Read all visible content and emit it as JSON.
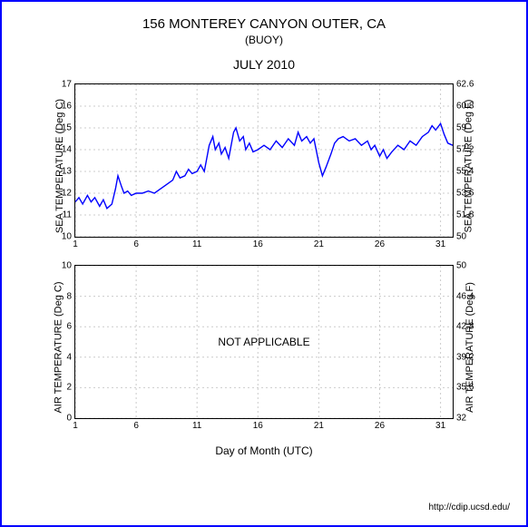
{
  "header": {
    "title": "156 MONTEREY CANYON OUTER, CA",
    "subtitle": "(BUOY)",
    "period": "JULY 2010"
  },
  "attribution": "http://cdip.ucsd.edu/",
  "x_axis": {
    "label": "Day of Month (UTC)",
    "ticks": [
      1,
      6,
      11,
      16,
      21,
      26,
      31
    ],
    "xlim": [
      1,
      32
    ]
  },
  "sea_temp": {
    "type": "line",
    "left_label": "SEA TEMPERATURE (Deg C)",
    "right_label": "SEA TEMPERATURE (Deg F)",
    "ylim": [
      10,
      17
    ],
    "yticks_left": [
      10,
      11,
      12,
      13,
      14,
      15,
      16,
      17
    ],
    "yticks_right": [
      50,
      51.8,
      53.6,
      55.4,
      57.2,
      59,
      60.8,
      62.6
    ],
    "line_color": "#0000ff",
    "grid_color": "#cccccc",
    "line_width": 1.4,
    "series": [
      {
        "x": 1.0,
        "y": 11.6
      },
      {
        "x": 1.3,
        "y": 11.8
      },
      {
        "x": 1.6,
        "y": 11.5
      },
      {
        "x": 2.0,
        "y": 11.9
      },
      {
        "x": 2.3,
        "y": 11.6
      },
      {
        "x": 2.6,
        "y": 11.8
      },
      {
        "x": 3.0,
        "y": 11.4
      },
      {
        "x": 3.3,
        "y": 11.7
      },
      {
        "x": 3.6,
        "y": 11.3
      },
      {
        "x": 4.0,
        "y": 11.5
      },
      {
        "x": 4.3,
        "y": 12.2
      },
      {
        "x": 4.5,
        "y": 12.8
      },
      {
        "x": 4.8,
        "y": 12.3
      },
      {
        "x": 5.0,
        "y": 12.0
      },
      {
        "x": 5.3,
        "y": 12.1
      },
      {
        "x": 5.6,
        "y": 11.9
      },
      {
        "x": 6.0,
        "y": 12.0
      },
      {
        "x": 6.5,
        "y": 12.0
      },
      {
        "x": 7.0,
        "y": 12.1
      },
      {
        "x": 7.5,
        "y": 12.0
      },
      {
        "x": 8.0,
        "y": 12.2
      },
      {
        "x": 8.5,
        "y": 12.4
      },
      {
        "x": 9.0,
        "y": 12.6
      },
      {
        "x": 9.3,
        "y": 13.0
      },
      {
        "x": 9.6,
        "y": 12.7
      },
      {
        "x": 10.0,
        "y": 12.8
      },
      {
        "x": 10.3,
        "y": 13.1
      },
      {
        "x": 10.6,
        "y": 12.9
      },
      {
        "x": 11.0,
        "y": 13.0
      },
      {
        "x": 11.3,
        "y": 13.3
      },
      {
        "x": 11.6,
        "y": 13.0
      },
      {
        "x": 12.0,
        "y": 14.2
      },
      {
        "x": 12.3,
        "y": 14.6
      },
      {
        "x": 12.5,
        "y": 14.0
      },
      {
        "x": 12.8,
        "y": 14.3
      },
      {
        "x": 13.0,
        "y": 13.8
      },
      {
        "x": 13.3,
        "y": 14.1
      },
      {
        "x": 13.6,
        "y": 13.6
      },
      {
        "x": 14.0,
        "y": 14.8
      },
      {
        "x": 14.2,
        "y": 15.0
      },
      {
        "x": 14.5,
        "y": 14.4
      },
      {
        "x": 14.8,
        "y": 14.6
      },
      {
        "x": 15.0,
        "y": 14.0
      },
      {
        "x": 15.3,
        "y": 14.3
      },
      {
        "x": 15.6,
        "y": 13.9
      },
      {
        "x": 16.0,
        "y": 14.0
      },
      {
        "x": 16.5,
        "y": 14.2
      },
      {
        "x": 17.0,
        "y": 14.0
      },
      {
        "x": 17.5,
        "y": 14.4
      },
      {
        "x": 18.0,
        "y": 14.1
      },
      {
        "x": 18.5,
        "y": 14.5
      },
      {
        "x": 19.0,
        "y": 14.2
      },
      {
        "x": 19.3,
        "y": 14.8
      },
      {
        "x": 19.6,
        "y": 14.4
      },
      {
        "x": 20.0,
        "y": 14.6
      },
      {
        "x": 20.3,
        "y": 14.3
      },
      {
        "x": 20.6,
        "y": 14.5
      },
      {
        "x": 21.0,
        "y": 13.4
      },
      {
        "x": 21.3,
        "y": 12.8
      },
      {
        "x": 21.6,
        "y": 13.2
      },
      {
        "x": 22.0,
        "y": 13.8
      },
      {
        "x": 22.3,
        "y": 14.3
      },
      {
        "x": 22.6,
        "y": 14.5
      },
      {
        "x": 23.0,
        "y": 14.6
      },
      {
        "x": 23.5,
        "y": 14.4
      },
      {
        "x": 24.0,
        "y": 14.5
      },
      {
        "x": 24.5,
        "y": 14.2
      },
      {
        "x": 25.0,
        "y": 14.4
      },
      {
        "x": 25.3,
        "y": 14.0
      },
      {
        "x": 25.6,
        "y": 14.2
      },
      {
        "x": 26.0,
        "y": 13.7
      },
      {
        "x": 26.3,
        "y": 14.0
      },
      {
        "x": 26.6,
        "y": 13.6
      },
      {
        "x": 27.0,
        "y": 13.9
      },
      {
        "x": 27.5,
        "y": 14.2
      },
      {
        "x": 28.0,
        "y": 14.0
      },
      {
        "x": 28.5,
        "y": 14.4
      },
      {
        "x": 29.0,
        "y": 14.2
      },
      {
        "x": 29.5,
        "y": 14.6
      },
      {
        "x": 30.0,
        "y": 14.8
      },
      {
        "x": 30.3,
        "y": 15.1
      },
      {
        "x": 30.6,
        "y": 14.9
      },
      {
        "x": 31.0,
        "y": 15.2
      },
      {
        "x": 31.3,
        "y": 14.7
      },
      {
        "x": 31.6,
        "y": 14.3
      },
      {
        "x": 32.0,
        "y": 14.2
      }
    ]
  },
  "air_temp": {
    "left_label": "AIR TEMPERATURE (Deg C)",
    "right_label": "AIR TEMPERATURE (Deg F)",
    "ylim": [
      0,
      10
    ],
    "yticks_left": [
      0,
      2,
      4,
      6,
      8,
      10
    ],
    "yticks_right": [
      32,
      35.6,
      39.2,
      42.8,
      46.4,
      50
    ],
    "grid_color": "#cccccc",
    "message": "NOT APPLICABLE"
  }
}
